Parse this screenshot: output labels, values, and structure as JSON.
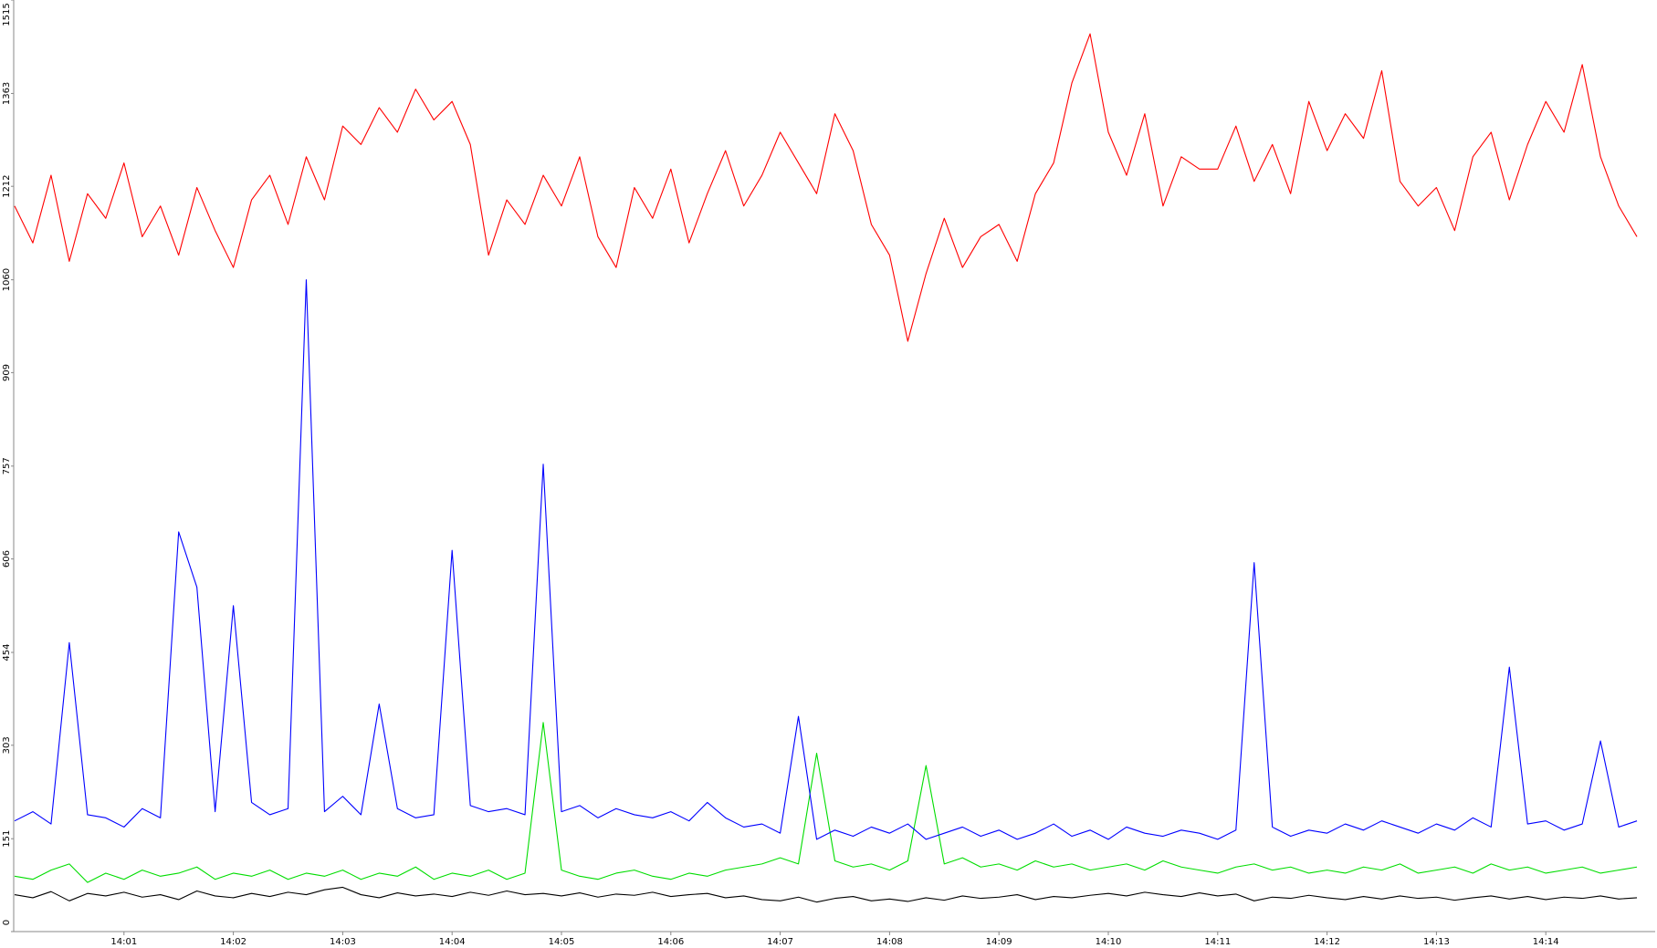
{
  "chart_data": {
    "type": "line",
    "categories": [
      null,
      null,
      null,
      null,
      null,
      null,
      "14:01",
      null,
      null,
      null,
      null,
      null,
      "14:02",
      null,
      null,
      null,
      null,
      null,
      "14:03",
      null,
      null,
      null,
      null,
      null,
      "14:04",
      null,
      null,
      null,
      null,
      null,
      "14:05",
      null,
      null,
      null,
      null,
      null,
      "14:06",
      null,
      null,
      null,
      null,
      null,
      "14:07",
      null,
      null,
      null,
      null,
      null,
      "14:08",
      null,
      null,
      null,
      null,
      null,
      "14:09",
      null,
      null,
      null,
      null,
      null,
      "14:10",
      null,
      null,
      null,
      null,
      null,
      "14:11",
      null,
      null,
      null,
      null,
      null,
      "14:12",
      null,
      null,
      null,
      null,
      null,
      "14:13",
      null,
      null,
      null,
      null,
      null,
      "14:14",
      null,
      null,
      null,
      null,
      null
    ],
    "series": [
      {
        "color": "#ff0000",
        "values": [
          1180,
          1120,
          1230,
          1090,
          1200,
          1160,
          1250,
          1130,
          1180,
          1100,
          1210,
          1140,
          1080,
          1190,
          1230,
          1150,
          1260,
          1190,
          1310,
          1280,
          1340,
          1300,
          1370,
          1320,
          1350,
          1280,
          1100,
          1190,
          1150,
          1230,
          1180,
          1260,
          1130,
          1080,
          1210,
          1160,
          1240,
          1120,
          1200,
          1270,
          1180,
          1230,
          1300,
          1250,
          1200,
          1330,
          1270,
          1150,
          1100,
          960,
          1070,
          1160,
          1080,
          1130,
          1150,
          1090,
          1200,
          1250,
          1380,
          1460,
          1300,
          1230,
          1330,
          1180,
          1260,
          1240,
          1240,
          1310,
          1220,
          1280,
          1200,
          1350,
          1270,
          1330,
          1290,
          1400,
          1220,
          1180,
          1210,
          1140,
          1260,
          1300,
          1190,
          1280,
          1350,
          1300,
          1410,
          1260,
          1180,
          1130
        ]
      },
      {
        "color": "#0000ff",
        "values": [
          180,
          195,
          175,
          470,
          190,
          185,
          170,
          200,
          185,
          650,
          560,
          195,
          530,
          210,
          190,
          200,
          1060,
          195,
          220,
          190,
          370,
          200,
          185,
          190,
          620,
          205,
          195,
          200,
          190,
          760,
          195,
          205,
          185,
          200,
          190,
          185,
          195,
          180,
          210,
          185,
          170,
          175,
          160,
          350,
          150,
          165,
          155,
          170,
          160,
          175,
          150,
          160,
          170,
          155,
          165,
          150,
          160,
          175,
          155,
          165,
          150,
          170,
          160,
          155,
          165,
          160,
          150,
          165,
          600,
          170,
          155,
          165,
          160,
          175,
          165,
          180,
          170,
          160,
          175,
          165,
          185,
          170,
          430,
          175,
          180,
          165,
          175,
          310,
          170,
          180
        ]
      },
      {
        "color": "#00dd00",
        "values": [
          90,
          85,
          100,
          110,
          80,
          95,
          85,
          100,
          90,
          95,
          105,
          85,
          95,
          90,
          100,
          85,
          95,
          90,
          100,
          85,
          95,
          90,
          105,
          85,
          95,
          90,
          100,
          85,
          95,
          340,
          100,
          90,
          85,
          95,
          100,
          90,
          85,
          95,
          90,
          100,
          105,
          110,
          120,
          110,
          290,
          115,
          105,
          110,
          100,
          115,
          270,
          110,
          120,
          105,
          110,
          100,
          115,
          105,
          110,
          100,
          105,
          110,
          100,
          115,
          105,
          100,
          95,
          105,
          110,
          100,
          105,
          95,
          100,
          95,
          105,
          100,
          110,
          95,
          100,
          105,
          95,
          110,
          100,
          105,
          95,
          100,
          105,
          95,
          100,
          105
        ]
      },
      {
        "color": "#000000",
        "values": [
          60,
          55,
          65,
          50,
          62,
          58,
          64,
          56,
          60,
          52,
          66,
          58,
          55,
          62,
          57,
          64,
          60,
          68,
          72,
          60,
          55,
          63,
          58,
          61,
          57,
          64,
          59,
          66,
          60,
          62,
          58,
          63,
          56,
          61,
          59,
          64,
          57,
          60,
          62,
          55,
          58,
          52,
          50,
          56,
          48,
          54,
          57,
          50,
          53,
          49,
          55,
          51,
          58,
          54,
          56,
          60,
          52,
          57,
          55,
          59,
          62,
          58,
          64,
          60,
          57,
          63,
          58,
          61,
          50,
          56,
          54,
          59,
          55,
          52,
          57,
          53,
          58,
          54,
          56,
          51,
          55,
          58,
          53,
          57,
          52,
          56,
          54,
          58,
          53,
          55
        ]
      }
    ],
    "ylim": [
      0,
      1515
    ],
    "yticks": [
      0,
      151,
      303,
      454,
      606,
      757,
      909,
      1060,
      1212,
      1363,
      1515
    ],
    "grid": false
  }
}
